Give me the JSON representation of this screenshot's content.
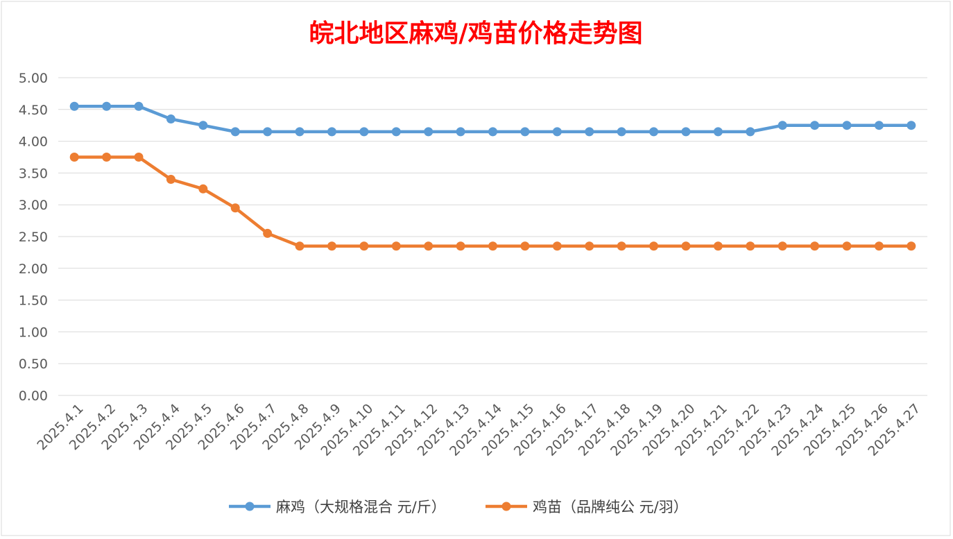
{
  "chart_data": {
    "type": "line",
    "title": "皖北地区麻鸡/鸡苗价格走势图",
    "title_color": "#ff0000",
    "xlabel": "",
    "ylabel": "",
    "ylim": [
      0,
      5
    ],
    "y_ticks": [
      "0.00",
      "0.50",
      "1.00",
      "1.50",
      "2.00",
      "2.50",
      "3.00",
      "3.50",
      "4.00",
      "4.50",
      "5.00"
    ],
    "grid": true,
    "legend_position": "bottom",
    "categories": [
      "2025.4.1",
      "2025.4.2",
      "2025.4.3",
      "2025.4.4",
      "2025.4.5",
      "2025.4.6",
      "2025.4.7",
      "2025.4.8",
      "2025.4.9",
      "2025.4.10",
      "2025.4.11",
      "2025.4.12",
      "2025.4.13",
      "2025.4.14",
      "2025.4.15",
      "2025.4.16",
      "2025.4.17",
      "2025.4.18",
      "2025.4.19",
      "2025.4.20",
      "2025.4.21",
      "2025.4.22",
      "2025.4.23",
      "2025.4.24",
      "2025.4.25",
      "2025.4.26",
      "2025.4.27"
    ],
    "series": [
      {
        "name": "麻鸡（大规格混合 元/斤）",
        "color": "#5b9bd5",
        "values": [
          4.55,
          4.55,
          4.55,
          4.35,
          4.25,
          4.15,
          4.15,
          4.15,
          4.15,
          4.15,
          4.15,
          4.15,
          4.15,
          4.15,
          4.15,
          4.15,
          4.15,
          4.15,
          4.15,
          4.15,
          4.15,
          4.15,
          4.25,
          4.25,
          4.25,
          4.25,
          4.25
        ]
      },
      {
        "name": "鸡苗（品牌纯公 元/羽）",
        "color": "#ed7d31",
        "values": [
          3.75,
          3.75,
          3.75,
          3.4,
          3.25,
          2.95,
          2.55,
          2.35,
          2.35,
          2.35,
          2.35,
          2.35,
          2.35,
          2.35,
          2.35,
          2.35,
          2.35,
          2.35,
          2.35,
          2.35,
          2.35,
          2.35,
          2.35,
          2.35,
          2.35,
          2.35,
          2.35
        ]
      }
    ]
  }
}
